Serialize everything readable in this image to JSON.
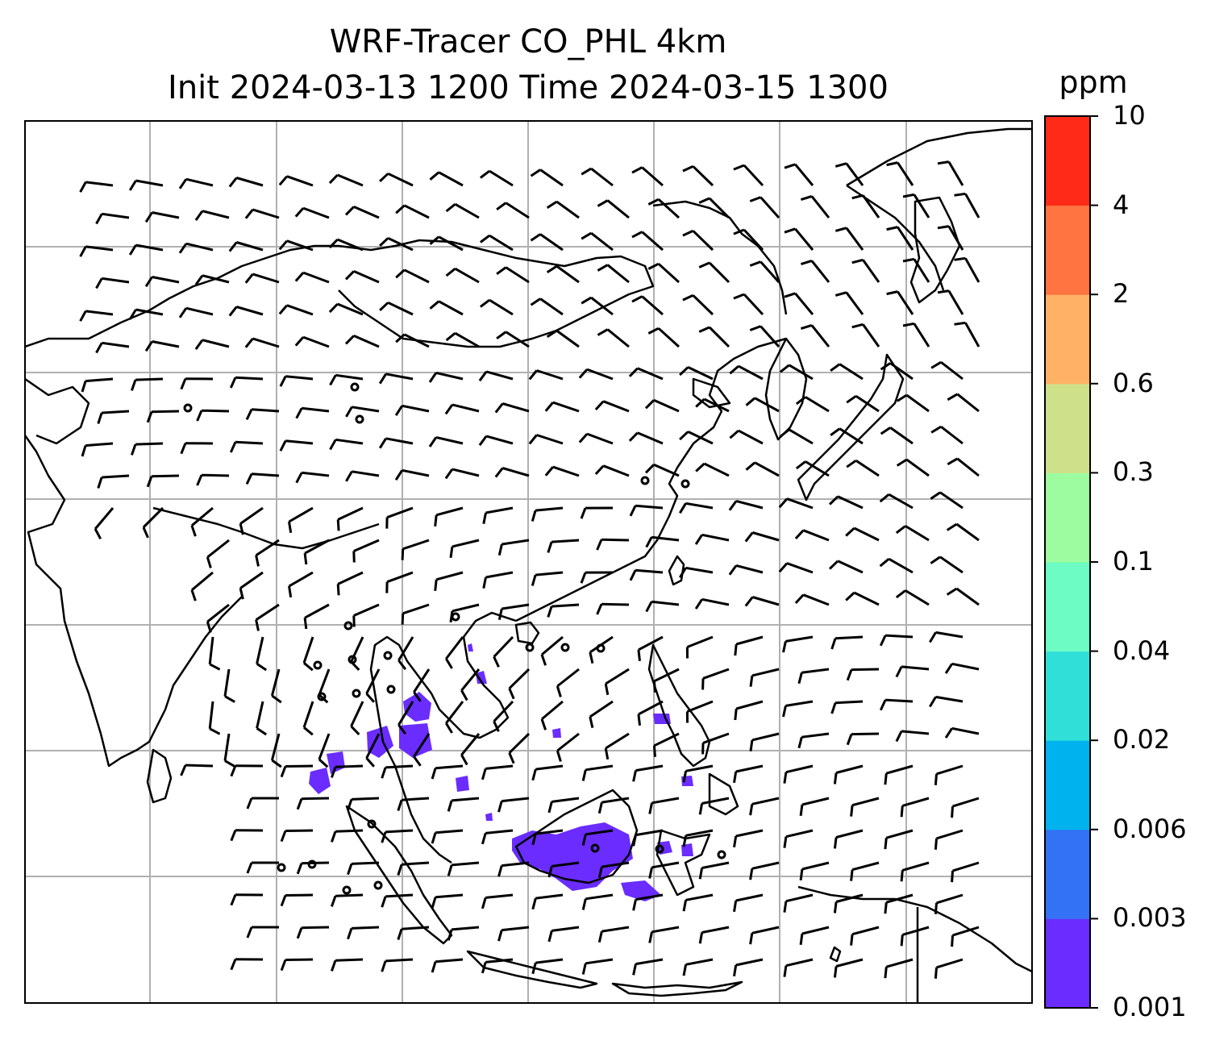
{
  "title_line1": "WRF-Tracer CO_PHL 4km",
  "title_line2": "Init 2024-03-13 1200 Time 2024-03-15 1300",
  "colorbar": {
    "unit": "ppm",
    "levels": [
      "0.001",
      "0.003",
      "0.006",
      "0.02",
      "0.04",
      "0.1",
      "0.3",
      "0.6",
      "2",
      "4",
      "10"
    ],
    "colors": [
      "#6a2cff",
      "#3472f5",
      "#00b2ee",
      "#30e0d8",
      "#6cfcc4",
      "#9dfca0",
      "#cfe08a",
      "#ffb266",
      "#ff7440",
      "#ff2a18"
    ]
  },
  "map": {
    "type": "tracer-concentration map with wind barbs",
    "region": "South / Southeast / East Asia",
    "plume_color": "#6a2cff",
    "gridlines": "on"
  }
}
